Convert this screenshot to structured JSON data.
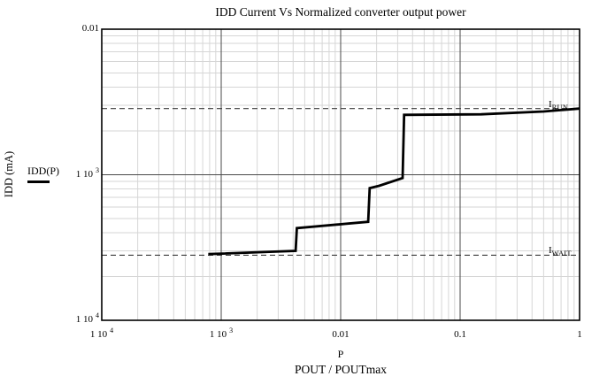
{
  "title": "IDD Current Vs Normalized converter output power",
  "legend": {
    "label": "IDD(P)"
  },
  "y_axis": {
    "label": "IDD (mA)",
    "ticks": [
      {
        "base": "0.01",
        "exp": "",
        "value": 0.01
      },
      {
        "base": "1 10",
        "exp": "3",
        "value": 0.001
      },
      {
        "base": "1 10",
        "exp": "4",
        "value": 0.0001
      }
    ]
  },
  "x_axis": {
    "var_label": "P",
    "label": "POUT / POUTmax",
    "ticks": [
      {
        "base": "1 10",
        "exp": "4",
        "value": 0.0001
      },
      {
        "base": "1 10",
        "exp": "3",
        "value": 0.001
      },
      {
        "base": "0.01",
        "exp": "",
        "value": 0.01
      },
      {
        "base": "0.1",
        "exp": "",
        "value": 0.1
      },
      {
        "base": "1",
        "exp": "",
        "value": 1
      }
    ]
  },
  "chart_data": {
    "type": "line",
    "title": "IDD Current Vs Normalized converter output power",
    "xlabel": "POUT / POUTmax",
    "ylabel": "IDD (mA)",
    "x_scale": "log",
    "y_scale": "log",
    "xlim": [
      0.0001,
      1
    ],
    "ylim": [
      0.0001,
      0.01
    ],
    "grid": true,
    "series": [
      {
        "name": "IDD(P)",
        "x": [
          0.00078,
          0.0042,
          0.0043,
          0.017,
          0.0175,
          0.021,
          0.033,
          0.034,
          0.15,
          0.5,
          1.0
        ],
        "y": [
          0.000285,
          0.0003,
          0.00043,
          0.000475,
          0.00081,
          0.00084,
          0.00095,
          0.00258,
          0.0026,
          0.00272,
          0.00285
        ]
      }
    ],
    "reference_lines": [
      {
        "id": "run",
        "label_main": "I",
        "label_sub": "RUN",
        "value": 0.00285
      },
      {
        "id": "wait",
        "label_main": "I",
        "label_sub": "WAIT",
        "value": 0.00028
      }
    ]
  },
  "colors": {
    "curve": "#000000",
    "minor_grid": "#d6d6d6",
    "major_grid": "#4a4a4a",
    "border": "#000000",
    "dashed": "#3a3a3a",
    "text": "#000000"
  }
}
